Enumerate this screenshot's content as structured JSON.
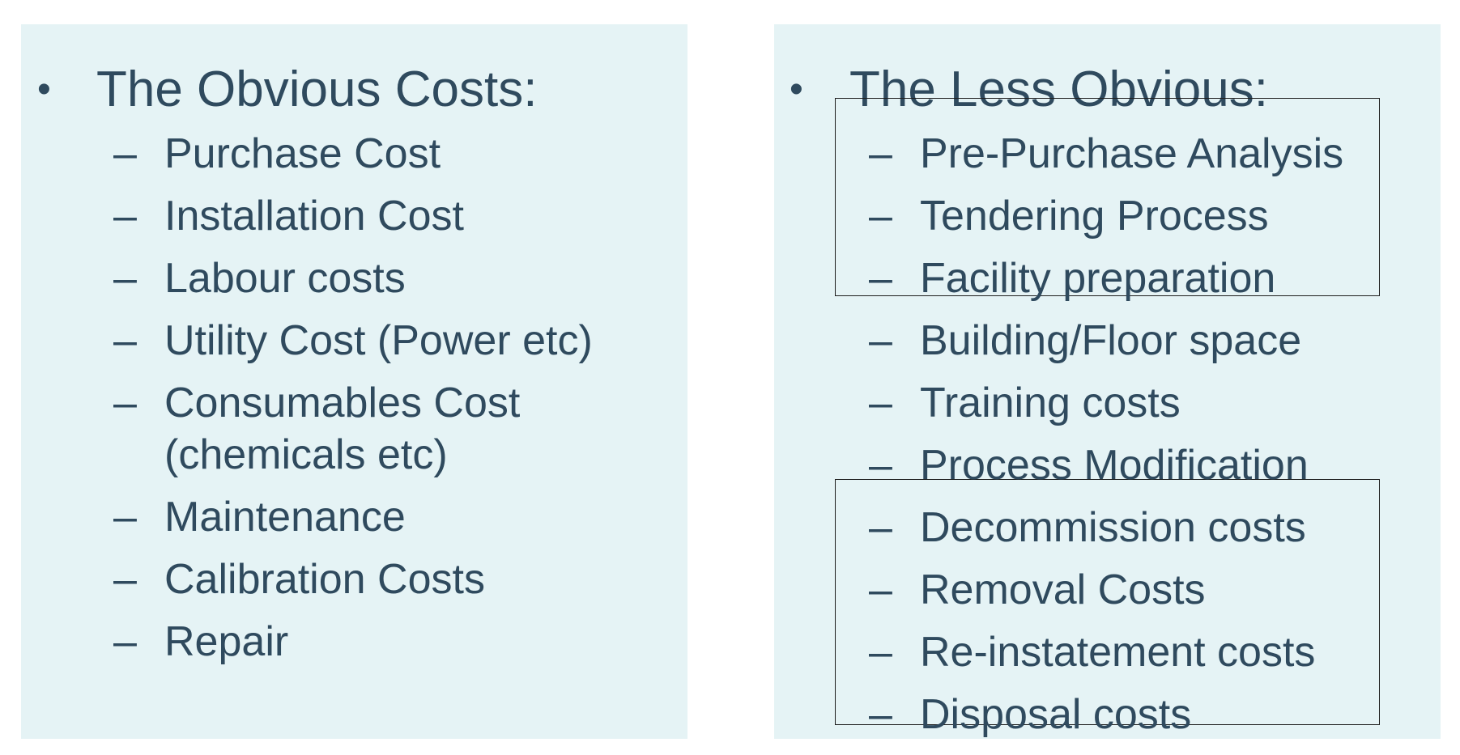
{
  "left": {
    "bullet": "•",
    "heading": "The Obvious Costs:",
    "dash": "–",
    "items": [
      "Purchase Cost",
      "Installation Cost",
      "Labour costs",
      "Utility Cost (Power etc)",
      "Consumables Cost",
      "(chemicals etc)",
      "Maintenance",
      "Calibration Costs",
      "Repair"
    ]
  },
  "right": {
    "bullet": "•",
    "heading": "The Less Obvious:",
    "dash": "–",
    "items": [
      "Pre-Purchase Analysis",
      "Tendering Process",
      "Facility preparation",
      "Building/Floor space",
      "Training costs",
      "Process Modification",
      "Decommission costs",
      "Removal Costs",
      "Re-instatement costs",
      "Disposal costs"
    ]
  }
}
